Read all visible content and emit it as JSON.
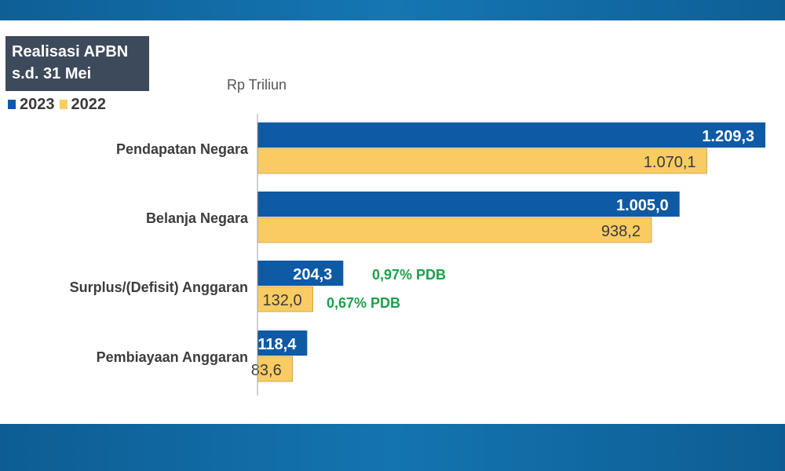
{
  "title_lines": [
    "Realisasi APBN",
    "s.d. 31 Mei"
  ],
  "unit_label": "Rp Triliun",
  "colors": {
    "s2023": "#0f5aa5",
    "s2022": "#f9cb63",
    "text": "#3c3c3c",
    "pdb": "#1e9e4a"
  },
  "legend": [
    {
      "label": "2023",
      "color": "#0f5aa5"
    },
    {
      "label": "2022",
      "color": "#f9cb63"
    }
  ],
  "chart_data": {
    "type": "bar",
    "orientation": "horizontal",
    "unit": "Rp Triliun",
    "categories": [
      "Pendapatan Negara",
      "Belanja Negara",
      "Surplus/(Defisit) Anggaran",
      "Pembiayaan Anggaran"
    ],
    "series": [
      {
        "name": "2023",
        "values": [
          1209.3,
          1005.0,
          204.3,
          118.4
        ],
        "labels": [
          "1.209,3",
          "1.005,0",
          "204,3",
          "118,4"
        ]
      },
      {
        "name": "2022",
        "values": [
          1070.1,
          938.2,
          132.0,
          83.6
        ],
        "labels": [
          "1.070,1",
          "938,2",
          "132,0",
          "83,6"
        ]
      }
    ],
    "annotations": [
      {
        "category": "Surplus/(Defisit) Anggaran",
        "series": "2023",
        "text": "0,97% PDB"
      },
      {
        "category": "Surplus/(Defisit) Anggaran",
        "series": "2022",
        "text": "0,67% PDB"
      }
    ],
    "xlim": [
      0,
      1209.3
    ],
    "grid": false,
    "legend_position": "top-left"
  }
}
